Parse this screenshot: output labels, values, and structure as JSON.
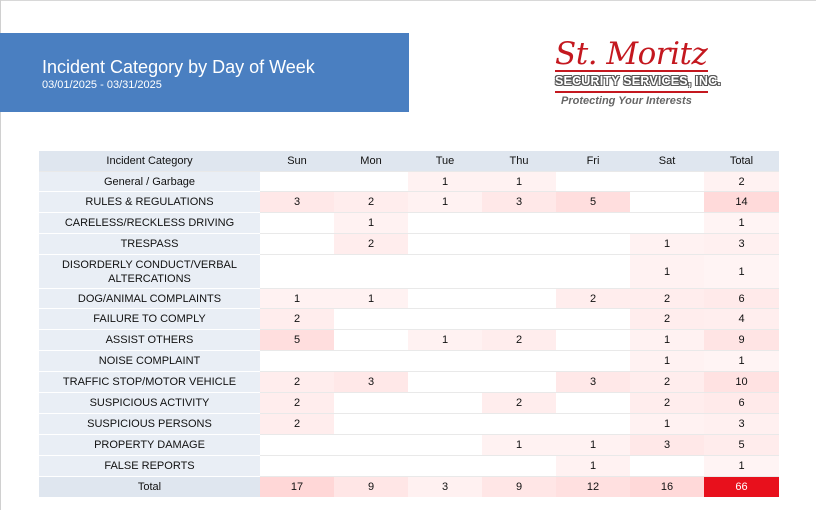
{
  "header": {
    "title": "Incident Category by Day of Week",
    "date_range": "03/01/2025 - 03/31/2025"
  },
  "logo": {
    "name": "St. Moritz",
    "company": "SECURITY SERVICES, INC.",
    "tagline": "Protecting Your Interests"
  },
  "table": {
    "columns": [
      "Incident Category",
      "Sun",
      "Mon",
      "Tue",
      "Thu",
      "Fri",
      "Sat",
      "Total"
    ],
    "rows": [
      {
        "category": "General / Garbage",
        "values": [
          "",
          "",
          "1",
          "1",
          "",
          "",
          "2"
        ]
      },
      {
        "category": "RULES & REGULATIONS",
        "values": [
          "3",
          "2",
          "1",
          "3",
          "5",
          "",
          "14"
        ]
      },
      {
        "category": "CARELESS/RECKLESS DRIVING",
        "values": [
          "",
          "1",
          "",
          "",
          "",
          "",
          "1"
        ]
      },
      {
        "category": "TRESPASS",
        "values": [
          "",
          "2",
          "",
          "",
          "",
          "1",
          "3"
        ]
      },
      {
        "category": "DISORDERLY CONDUCT/VERBAL ALTERCATIONS",
        "values": [
          "",
          "",
          "",
          "",
          "",
          "1",
          "1"
        ]
      },
      {
        "category": "DOG/ANIMAL COMPLAINTS",
        "values": [
          "1",
          "1",
          "",
          "",
          "2",
          "2",
          "6"
        ]
      },
      {
        "category": "FAILURE TO COMPLY",
        "values": [
          "2",
          "",
          "",
          "",
          "",
          "2",
          "4"
        ]
      },
      {
        "category": "ASSIST OTHERS",
        "values": [
          "5",
          "",
          "1",
          "2",
          "",
          "1",
          "9"
        ]
      },
      {
        "category": "NOISE COMPLAINT",
        "values": [
          "",
          "",
          "",
          "",
          "",
          "1",
          "1"
        ]
      },
      {
        "category": "TRAFFIC STOP/MOTOR VEHICLE",
        "values": [
          "2",
          "3",
          "",
          "",
          "3",
          "2",
          "10"
        ]
      },
      {
        "category": "SUSPICIOUS ACTIVITY",
        "values": [
          "2",
          "",
          "",
          "2",
          "",
          "2",
          "6"
        ]
      },
      {
        "category": "SUSPICIOUS PERSONS",
        "values": [
          "2",
          "",
          "",
          "",
          "",
          "1",
          "3"
        ]
      },
      {
        "category": "PROPERTY DAMAGE",
        "values": [
          "",
          "",
          "",
          "1",
          "1",
          "3",
          "5"
        ]
      },
      {
        "category": "FALSE REPORTS",
        "values": [
          "",
          "",
          "",
          "",
          "1",
          "",
          "1"
        ]
      }
    ],
    "total": {
      "category": "Total",
      "values": [
        "17",
        "9",
        "3",
        "9",
        "12",
        "16",
        "66"
      ]
    }
  },
  "colors": {
    "banner": "#4a7fc1",
    "logo_red": "#c4181f",
    "heat_max": "#e8101c"
  }
}
